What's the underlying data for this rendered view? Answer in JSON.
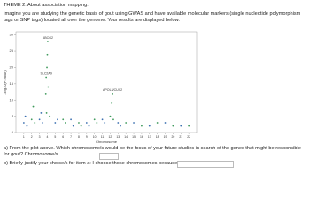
{
  "theme": "THEME 2: About association mapping:",
  "intro": "Imagine you are studying the genetic basis of gout using GWAS and have available molecular markers (single nucleotide polymorphism tags or SNP tags) located all over the genome. Your results are displayed below.",
  "figure": {
    "chart_data": {
      "type": "scatter",
      "y_label": "-log10(P-value)",
      "x_label": "Chromosome",
      "xlim": [
        0,
        23
      ],
      "xticks": [
        1,
        2,
        3,
        4,
        5,
        6,
        7,
        8,
        9,
        10,
        11,
        12,
        13,
        14,
        15,
        16,
        17,
        18,
        19,
        20,
        21,
        22
      ],
      "ylim": [
        0,
        31
      ],
      "yticks": [
        0,
        5,
        10,
        15,
        20,
        25,
        30
      ],
      "series": [
        {
          "color": "#3b6fb0",
          "x": [
            1.0,
            1.2,
            1.4,
            3.0,
            3.2,
            3.4,
            5.0,
            5.3,
            7.0,
            7.3,
            9.0,
            9.3,
            11.0,
            11.3,
            13.0,
            13.3,
            15.0,
            17.0,
            19.0,
            21.0
          ],
          "values": [
            3,
            5,
            2,
            4,
            6,
            3,
            3,
            4,
            4,
            2,
            3,
            2,
            4,
            3,
            3,
            2,
            3,
            2,
            3,
            2
          ]
        },
        {
          "color": "#3f9a5c",
          "x": [
            2.0,
            2.2,
            2.4,
            3.8,
            3.85,
            3.9,
            3.95,
            4.0,
            4.05,
            4.1,
            4.3,
            6.0,
            6.3,
            8.0,
            8.3,
            10.0,
            10.3,
            12.0,
            12.2,
            12.3,
            12.4,
            14.0,
            16.0,
            18.0,
            20.0,
            22.0
          ],
          "values": [
            4,
            8,
            3,
            12,
            17,
            6,
            20,
            24,
            28,
            14,
            5,
            4,
            3,
            3,
            2,
            4,
            3,
            5,
            9,
            12,
            4,
            3,
            2,
            3,
            2,
            2
          ]
        }
      ],
      "annotations": [
        {
          "text": "ABCG2",
          "x": 4.05,
          "y": 28
        },
        {
          "text": "SLC2A9",
          "x": 3.85,
          "y": 17
        },
        {
          "text": "APOL3/CUX2",
          "x": 12.3,
          "y": 12
        }
      ]
    }
  },
  "question_a": "a) From the plot above. Which chromosome/s would be the focus of your future studies in search of the genes that might be responsible for gout? Chromosome/s",
  "question_b": "b) Briefly justify your choice/s for item a: I choose those chromosomes because"
}
